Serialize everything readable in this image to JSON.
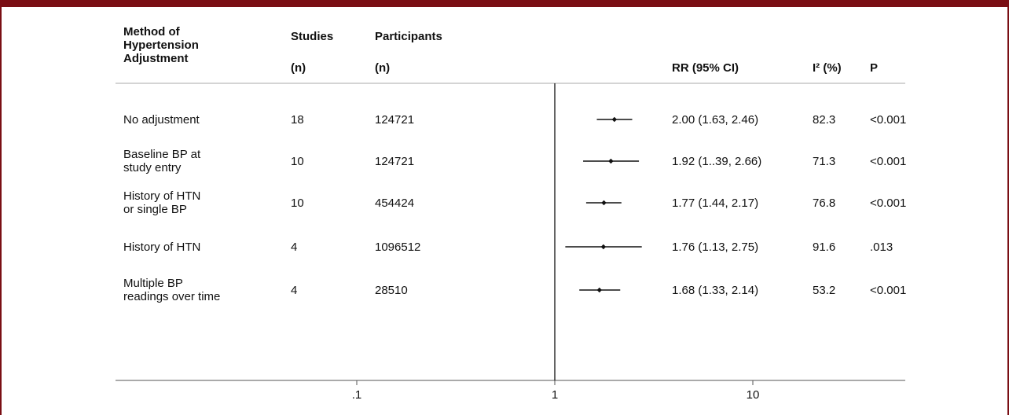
{
  "colors": {
    "frame": "#7a0e14",
    "ink": "#111111"
  },
  "headers": {
    "method": "Method of\nHypertension\nAdjustment",
    "studies": "Studies",
    "studies_unit": "(n)",
    "participants": "Participants",
    "participants_unit": "(n)",
    "rr": "RR (95% CI)",
    "i2": "I² (%)",
    "p": "P"
  },
  "chart_data": {
    "type": "forest",
    "x_scale": "log",
    "xlim": [
      0.03,
      40
    ],
    "null_line": 1,
    "x_ticks": [
      {
        "value": 0.1,
        "label": ".1"
      },
      {
        "value": 1,
        "label": "1"
      },
      {
        "value": 10,
        "label": "10"
      }
    ],
    "rows": [
      {
        "method": "No adjustment",
        "studies": "18",
        "participants": "124721",
        "rr": 2.0,
        "lo": 1.63,
        "hi": 2.46,
        "rr_text": "2.00 (1.63, 2.46)",
        "i2": "82.3",
        "p": "<0.001"
      },
      {
        "method": "Baseline BP at\nstudy entry",
        "studies": "10",
        "participants": "124721",
        "rr": 1.92,
        "lo": 1.39,
        "hi": 2.66,
        "rr_text": "1.92 (1..39, 2.66)",
        "i2": "71.3",
        "p": "<0.001"
      },
      {
        "method": "History of HTN\nor single BP",
        "studies": "10",
        "participants": "454424",
        "rr": 1.77,
        "lo": 1.44,
        "hi": 2.17,
        "rr_text": "1.77 (1.44, 2.17)",
        "i2": "76.8",
        "p": "<0.001"
      },
      {
        "method": "History of HTN",
        "studies": "4",
        "participants": "1096512",
        "rr": 1.76,
        "lo": 1.13,
        "hi": 2.75,
        "rr_text": "1.76 (1.13, 2.75)",
        "i2": "91.6",
        "p": ".013"
      },
      {
        "method": "Multiple BP\nreadings over time",
        "studies": "4",
        "participants": "28510",
        "rr": 1.68,
        "lo": 1.33,
        "hi": 2.14,
        "rr_text": "1.68 (1.33, 2.14)",
        "i2": "53.2",
        "p": "<0.001"
      }
    ]
  }
}
